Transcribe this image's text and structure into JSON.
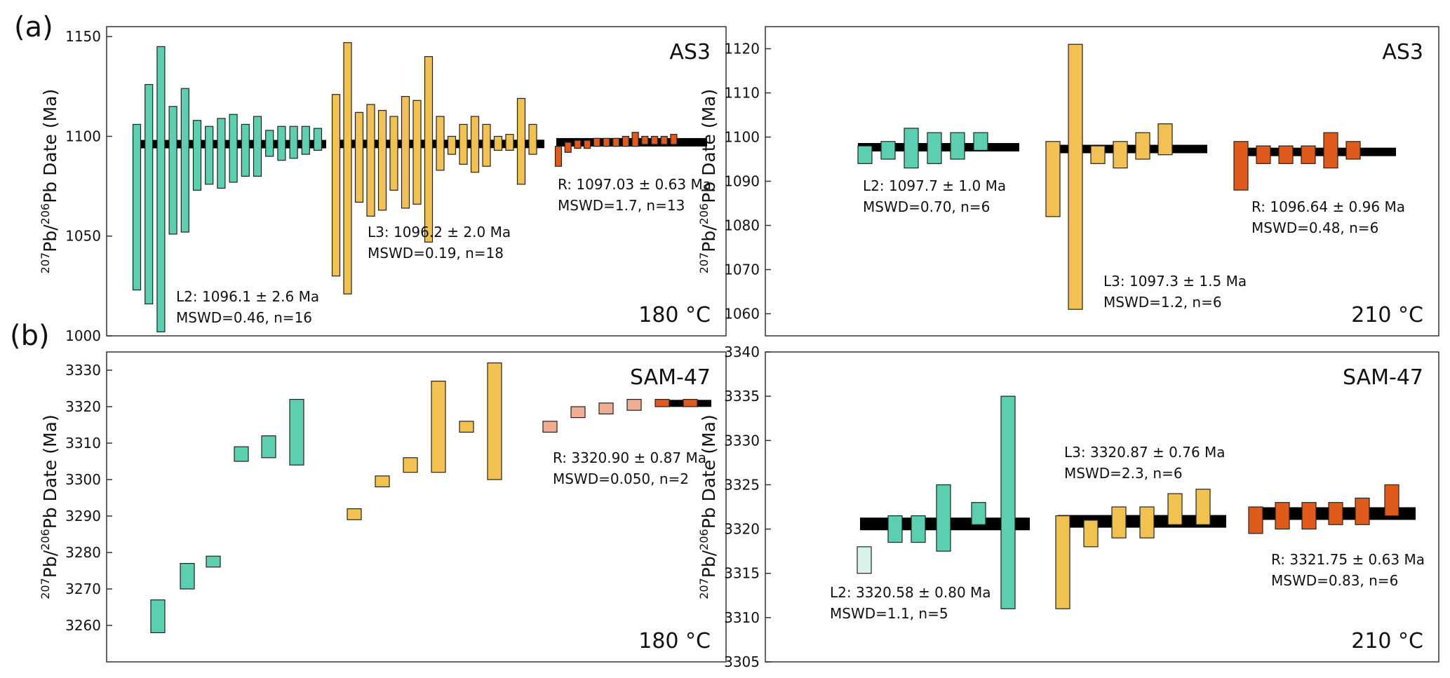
{
  "figure": {
    "label_a": "(a)",
    "label_b": "(b)"
  },
  "colors": {
    "L2": "#5ccfb0",
    "L2_light": "#d8f3ea",
    "L3": "#f1c152",
    "R": "#e05a1c",
    "R_light": "#f1ad93",
    "mean_bar": "#000000"
  },
  "chart_data": [
    {
      "id": "a180",
      "type": "bar",
      "title": "AS3",
      "temperature": "180 °C",
      "ylabel": {
        "sup1": "207",
        "base1": "Pb/",
        "sup2": "206",
        "base2": "Pb Date (Ma)"
      },
      "ylim": [
        1000,
        1155
      ],
      "yticks": [
        1000,
        1050,
        1100,
        1150
      ],
      "style": "band",
      "series": [
        {
          "name": "L2",
          "color": "L2",
          "mean": 1096.1,
          "uncertainty": 2.6,
          "mswd": 0.46,
          "n": 16,
          "label": "L2: 1096.1 ± 2.6 Ma",
          "stats": "MSWD=0.46, n=16",
          "bars": [
            [
              1023,
              1106
            ],
            [
              1016,
              1126
            ],
            [
              1002,
              1145
            ],
            [
              1051,
              1115
            ],
            [
              1052,
              1124
            ],
            [
              1073,
              1108
            ],
            [
              1076,
              1105
            ],
            [
              1074,
              1109
            ],
            [
              1077,
              1111
            ],
            [
              1080,
              1106
            ],
            [
              1080,
              1110
            ],
            [
              1090,
              1103
            ],
            [
              1088,
              1105
            ],
            [
              1089,
              1105
            ],
            [
              1091,
              1105
            ],
            [
              1093,
              1104
            ]
          ]
        },
        {
          "name": "L3",
          "color": "L3",
          "mean": 1096.2,
          "uncertainty": 2.0,
          "mswd": 0.19,
          "n": 18,
          "label": "L3: 1096.2 ± 2.0 Ma",
          "stats": "MSWD=0.19, n=18",
          "bars": [
            [
              1030,
              1121
            ],
            [
              1021,
              1147
            ],
            [
              1067,
              1112
            ],
            [
              1060,
              1116
            ],
            [
              1063,
              1113
            ],
            [
              1073,
              1110
            ],
            [
              1064,
              1120
            ],
            [
              1066,
              1118
            ],
            [
              1047,
              1140
            ],
            [
              1083,
              1110
            ],
            [
              1091,
              1100
            ],
            [
              1086,
              1106
            ],
            [
              1082,
              1110
            ],
            [
              1085,
              1106
            ],
            [
              1093,
              1100
            ],
            [
              1093,
              1101
            ],
            [
              1076,
              1119
            ],
            [
              1091,
              1106
            ]
          ]
        },
        {
          "name": "R",
          "color": "R",
          "mean": 1097.03,
          "uncertainty": 0.63,
          "mswd": 1.7,
          "n": 13,
          "label": "R: 1097.03 ± 0.63 Ma",
          "stats": "MSWD=1.7, n=13",
          "bars": [
            [
              1085,
              1095
            ],
            [
              1092,
              1097
            ],
            [
              1094,
              1098
            ],
            [
              1094,
              1098
            ],
            [
              1095,
              1099
            ],
            [
              1095,
              1099
            ],
            [
              1095,
              1099
            ],
            [
              1095,
              1100
            ],
            [
              1095,
              1102
            ],
            [
              1096,
              1100
            ],
            [
              1096,
              1100
            ],
            [
              1096,
              1100
            ],
            [
              1096,
              1101
            ]
          ]
        }
      ]
    },
    {
      "id": "a210",
      "type": "bar",
      "title": "AS3",
      "temperature": "210 °C",
      "ylabel": {
        "sup1": "207",
        "base1": "Pb/",
        "sup2": "206",
        "base2": "Pb Date (Ma)"
      },
      "ylim": [
        1055,
        1125
      ],
      "yticks": [
        1060,
        1070,
        1080,
        1090,
        1100,
        1110,
        1120
      ],
      "style": "band",
      "series": [
        {
          "name": "L2",
          "color": "L2",
          "mean": 1097.7,
          "uncertainty": 1.0,
          "mswd": 0.7,
          "n": 6,
          "label": "L2: 1097.7 ± 1.0 Ma",
          "stats": "MSWD=0.70, n=6",
          "bars": [
            [
              1094,
              1098
            ],
            [
              1095,
              1099
            ],
            [
              1093,
              1102
            ],
            [
              1094,
              1101
            ],
            [
              1095,
              1101
            ],
            [
              1097,
              1101
            ]
          ]
        },
        {
          "name": "L3",
          "color": "L3",
          "mean": 1097.3,
          "uncertainty": 1.5,
          "mswd": 1.2,
          "n": 6,
          "label": "L3: 1097.3 ± 1.5 Ma",
          "stats": "MSWD=1.2, n=6",
          "bars": [
            [
              1082,
              1099
            ],
            [
              1061,
              1121
            ],
            [
              1094,
              1098
            ],
            [
              1093,
              1099
            ],
            [
              1095,
              1101
            ],
            [
              1096,
              1103
            ]
          ]
        },
        {
          "name": "R",
          "color": "R",
          "mean": 1096.64,
          "uncertainty": 0.96,
          "mswd": 0.48,
          "n": 6,
          "label": "R: 1096.64 ± 0.96 Ma",
          "stats": "MSWD=0.48, n=6",
          "bars": [
            [
              1088,
              1099
            ],
            [
              1094,
              1098
            ],
            [
              1094,
              1098
            ],
            [
              1094,
              1098
            ],
            [
              1093,
              1101
            ],
            [
              1095,
              1099
            ]
          ]
        }
      ]
    },
    {
      "id": "b180",
      "type": "bar",
      "title": "SAM-47",
      "temperature": "180 °C",
      "ylabel": {
        "sup1": "207",
        "base1": "Pb/",
        "sup2": "206",
        "base2": "Pb Date (Ma)"
      },
      "ylim": [
        3250,
        3335
      ],
      "yticks": [
        3260,
        3270,
        3280,
        3290,
        3300,
        3310,
        3320,
        3330
      ],
      "style": "scatter",
      "series": [
        {
          "name": "L2",
          "color": "L2",
          "bars": [
            [
              3258,
              3267
            ],
            [
              3270,
              3277
            ],
            [
              3276,
              3279
            ],
            [
              3305,
              3309
            ],
            [
              3306,
              3312
            ],
            [
              3304,
              3322
            ]
          ]
        },
        {
          "name": "L3",
          "color": "L3",
          "bars": [
            [
              3289,
              3292
            ],
            [
              3298,
              3301
            ],
            [
              3302,
              3306
            ],
            [
              3302,
              3327
            ],
            [
              3313,
              3316
            ],
            [
              3300,
              3332
            ]
          ]
        },
        {
          "name": "R-excluded",
          "color": "R_light",
          "bars": [
            [
              3313,
              3316
            ],
            [
              3317,
              3320
            ],
            [
              3318,
              3321
            ],
            [
              3319,
              3322
            ]
          ]
        },
        {
          "name": "R",
          "color": "R",
          "mean": 3320.9,
          "uncertainty": 0.87,
          "mswd": 0.05,
          "n": 2,
          "label": "R: 3320.90 ± 0.87 Ma",
          "stats": "MSWD=0.050, n=2",
          "bars": [
            [
              3320,
              3322
            ],
            [
              3320,
              3322
            ]
          ]
        }
      ]
    },
    {
      "id": "b210",
      "type": "bar",
      "title": "SAM-47",
      "temperature": "210 °C",
      "ylabel": {
        "sup1": "207",
        "base1": "Pb/",
        "sup2": "206",
        "base2": "Pb Date (Ma)"
      },
      "ylim": [
        3305,
        3340
      ],
      "yticks": [
        3305,
        3310,
        3315,
        3320,
        3325,
        3330,
        3335,
        3340
      ],
      "style": "band",
      "series": [
        {
          "name": "L2",
          "color": "L2",
          "mean": 3320.58,
          "uncertainty": 0.8,
          "mswd": 1.1,
          "n": 5,
          "label": "L2: 3320.58 ± 0.80 Ma",
          "stats": "MSWD=1.1, n=5",
          "excluded_first": true,
          "bars": [
            [
              3315,
              3318
            ],
            [
              3318.5,
              3321.5
            ],
            [
              3318.5,
              3321.5
            ],
            [
              3317.5,
              3325
            ],
            [
              3320.5,
              3323
            ],
            [
              3311,
              3335
            ]
          ]
        },
        {
          "name": "L3",
          "color": "L3",
          "mean": 3320.87,
          "uncertainty": 0.76,
          "mswd": 2.3,
          "n": 6,
          "label": "L3: 3320.87 ± 0.76 Ma",
          "stats": "MSWD=2.3, n=6",
          "bars": [
            [
              3311,
              3321.5
            ],
            [
              3318,
              3321
            ],
            [
              3319,
              3322.5
            ],
            [
              3319,
              3322.5
            ],
            [
              3320.5,
              3324
            ],
            [
              3320.5,
              3324.5
            ]
          ]
        },
        {
          "name": "R",
          "color": "R",
          "mean": 3321.75,
          "uncertainty": 0.63,
          "mswd": 0.83,
          "n": 6,
          "label": "R: 3321.75 ± 0.63 Ma",
          "stats": "MSWD=0.83, n=6",
          "bars": [
            [
              3319.5,
              3322.5
            ],
            [
              3320,
              3323
            ],
            [
              3320,
              3323
            ],
            [
              3320.5,
              3323
            ],
            [
              3320.5,
              3323.5
            ],
            [
              3321.5,
              3325
            ]
          ]
        }
      ]
    }
  ]
}
